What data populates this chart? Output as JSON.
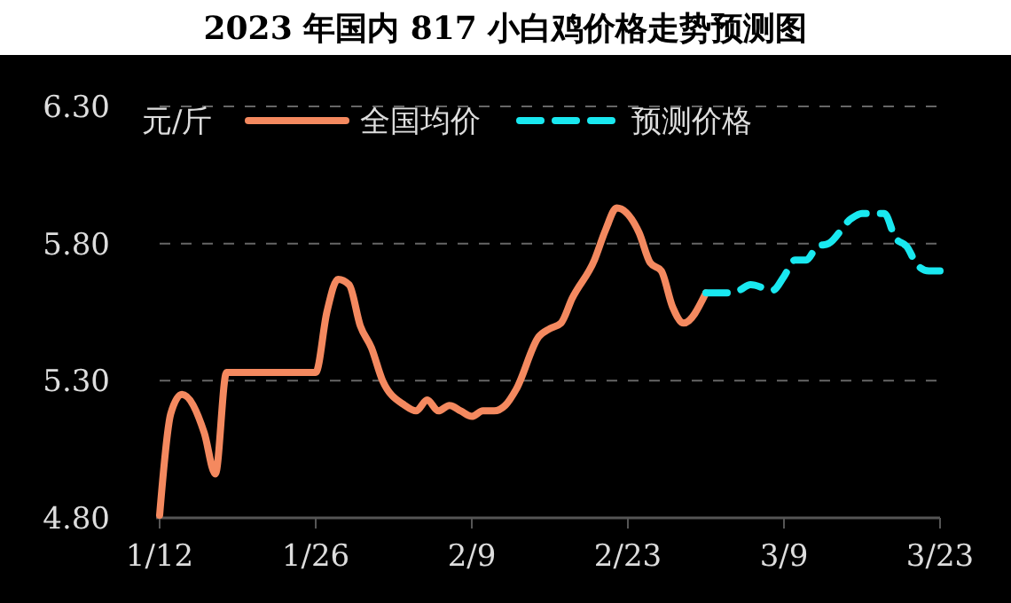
{
  "chart_data": {
    "type": "line",
    "title": "2023 年国内 817 小白鸡价格走势预测图",
    "ylabel": "元/斤",
    "xlim": [
      "2023-01-12",
      "2023-03-23"
    ],
    "xticks": [
      {
        "value": "2023-01-12",
        "label": "1/12"
      },
      {
        "value": "2023-01-26",
        "label": "1/26"
      },
      {
        "value": "2023-02-09",
        "label": "2/9"
      },
      {
        "value": "2023-02-23",
        "label": "2/23"
      },
      {
        "value": "2023-03-09",
        "label": "3/9"
      },
      {
        "value": "2023-03-23",
        "label": "3/23"
      }
    ],
    "ylim": [
      4.8,
      6.3
    ],
    "yticks": [
      {
        "value": 4.8,
        "label": "4.80"
      },
      {
        "value": 5.3,
        "label": "5.30"
      },
      {
        "value": 5.8,
        "label": "5.80"
      },
      {
        "value": 6.3,
        "label": "6.30"
      }
    ],
    "grid": "y",
    "legend": "top",
    "series": [
      {
        "name": "全国均价",
        "color": "#f4895f",
        "line_style": "solid",
        "x": [
          "2023-01-12",
          "2023-01-13",
          "2023-01-14",
          "2023-01-16",
          "2023-01-17",
          "2023-01-18",
          "2023-01-26",
          "2023-01-27",
          "2023-01-28",
          "2023-01-29",
          "2023-01-30",
          "2023-01-31",
          "2023-02-01",
          "2023-02-03",
          "2023-02-04",
          "2023-02-05",
          "2023-02-06",
          "2023-02-07",
          "2023-02-08",
          "2023-02-09",
          "2023-02-10",
          "2023-02-11",
          "2023-02-12",
          "2023-02-13",
          "2023-02-15",
          "2023-02-16",
          "2023-02-17",
          "2023-02-18",
          "2023-02-20",
          "2023-02-21",
          "2023-02-22",
          "2023-02-24",
          "2023-02-25",
          "2023-02-26",
          "2023-02-27",
          "2023-02-28",
          "2023-03-02"
        ],
        "values": [
          4.81,
          5.18,
          5.25,
          5.11,
          4.96,
          5.33,
          5.33,
          5.55,
          5.67,
          5.65,
          5.5,
          5.42,
          5.3,
          5.21,
          5.19,
          5.23,
          5.19,
          5.21,
          5.19,
          5.17,
          5.19,
          5.19,
          5.21,
          5.27,
          5.46,
          5.49,
          5.51,
          5.6,
          5.74,
          5.85,
          5.93,
          5.84,
          5.73,
          5.7,
          5.57,
          5.51,
          5.62
        ]
      },
      {
        "name": "预测价格",
        "color": "#19e8f0",
        "line_style": "dashed",
        "x": [
          "2023-03-02",
          "2023-03-04",
          "2023-03-05",
          "2023-03-06",
          "2023-03-08",
          "2023-03-09",
          "2023-03-10",
          "2023-03-11",
          "2023-03-12",
          "2023-03-13",
          "2023-03-15",
          "2023-03-16",
          "2023-03-18",
          "2023-03-19",
          "2023-03-20",
          "2023-03-21",
          "2023-03-22",
          "2023-03-23"
        ],
        "values": [
          5.62,
          5.62,
          5.63,
          5.65,
          5.63,
          5.68,
          5.74,
          5.74,
          5.79,
          5.8,
          5.89,
          5.91,
          5.91,
          5.82,
          5.79,
          5.72,
          5.7,
          5.7
        ]
      }
    ]
  }
}
